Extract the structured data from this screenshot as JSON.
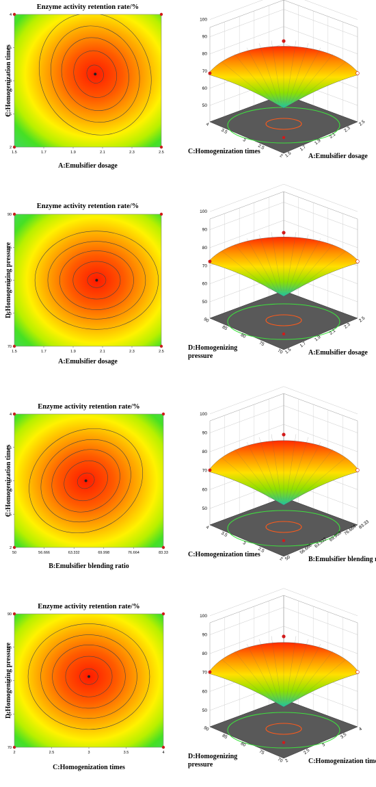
{
  "colors": {
    "low": "#2f9be8",
    "mid": "#46e024",
    "high_mid": "#ffe800",
    "high": "#ff2000",
    "contour": "#444444",
    "floor": "#595959"
  },
  "chart_data": [
    {
      "type": "contour",
      "title": "Enzyme activity retention rate/%",
      "xlabel": "A:Emulsifier dosage",
      "ylabel": "C:Homogenization times",
      "x_ticks": [
        "1.5",
        "1.7",
        "1.9",
        "2.1",
        "2.3",
        "2.5"
      ],
      "y_ticks": [
        "2",
        "2.5",
        "3",
        "3.5",
        "4"
      ],
      "xlim": [
        1.5,
        2.5
      ],
      "ylim": [
        2,
        4
      ],
      "optimum": {
        "x": 2.0,
        "y": 2.9
      }
    },
    {
      "type": "surface3d",
      "xlabel": "A:Emulsifier dosage",
      "ylabel": "C:Homogenization times",
      "z_ticks": [
        "50",
        "60",
        "70",
        "80",
        "90",
        "100"
      ],
      "x_ticks": [
        "1.5",
        "1.7",
        "1.9",
        "2.1",
        "2.3",
        "2.5"
      ],
      "y_ticks": [
        "2",
        "2.5",
        "3",
        "3.5",
        "4"
      ],
      "zlim": [
        45,
        100
      ]
    },
    {
      "type": "contour",
      "title": "Enzyme activity retention rate/%",
      "xlabel": "A:Emulsifier dosage",
      "ylabel": "D:Homogenizing pressure",
      "x_ticks": [
        "1.5",
        "1.7",
        "1.9",
        "2.1",
        "2.3",
        "2.5"
      ],
      "y_ticks": [
        "70",
        "75",
        "80",
        "85",
        "90"
      ],
      "xlim": [
        1.5,
        2.5
      ],
      "ylim": [
        70,
        90
      ],
      "optimum": {
        "x": 2.05,
        "y": 80
      }
    },
    {
      "type": "surface3d",
      "xlabel": "A:Emulsifier dosage",
      "ylabel": "D:Homogenizing pressure",
      "z_ticks": [
        "50",
        "60",
        "70",
        "80",
        "90",
        "100"
      ],
      "x_ticks": [
        "1.5",
        "1.7",
        "1.9",
        "2.1",
        "2.3",
        "2.5"
      ],
      "y_ticks": [
        "70",
        "75",
        "80",
        "85",
        "90"
      ],
      "zlim": [
        45,
        100
      ]
    },
    {
      "type": "contour",
      "title": "Enzyme activity retention rate/%",
      "xlabel": "B:Emulsifier blending ratio",
      "ylabel": "C:Homogenization times",
      "x_ticks": [
        "50",
        "56.666",
        "63.332",
        "69.998",
        "76.664",
        "83.33"
      ],
      "y_ticks": [
        "2",
        "2.5",
        "3",
        "3.5",
        "4"
      ],
      "xlim": [
        50,
        83.33
      ],
      "ylim": [
        2,
        4
      ],
      "optimum": {
        "x": 66,
        "y": 3.0
      }
    },
    {
      "type": "surface3d",
      "xlabel": "B:Emulsifier blending ratio",
      "ylabel": "C:Homogenization times",
      "z_ticks": [
        "50",
        "60",
        "70",
        "80",
        "90",
        "100"
      ],
      "x_ticks": [
        "50",
        "56.666",
        "63.332",
        "69.998",
        "76.664",
        "83.33"
      ],
      "y_ticks": [
        "2",
        "2.5",
        "3",
        "3.5",
        "4"
      ],
      "zlim": [
        45,
        100
      ]
    },
    {
      "type": "contour",
      "title": "Enzyme activity retention rate/%",
      "xlabel": "C:Homogenization times",
      "ylabel": "D:Homogenizing pressure",
      "x_ticks": [
        "2",
        "2.5",
        "3",
        "3.5",
        "4"
      ],
      "y_ticks": [
        "70",
        "75",
        "80",
        "85",
        "90"
      ],
      "xlim": [
        2,
        4
      ],
      "ylim": [
        70,
        90
      ],
      "optimum": {
        "x": 3.0,
        "y": 80
      }
    },
    {
      "type": "surface3d",
      "xlabel": "C:Homogenization times",
      "ylabel": "D:Homogenizing pressure",
      "z_ticks": [
        "50",
        "60",
        "70",
        "80",
        "90",
        "100"
      ],
      "x_ticks": [
        "2",
        "2.5",
        "3",
        "3.5",
        "4"
      ],
      "y_ticks": [
        "70",
        "75",
        "80",
        "85",
        "90"
      ],
      "zlim": [
        45,
        100
      ]
    }
  ]
}
